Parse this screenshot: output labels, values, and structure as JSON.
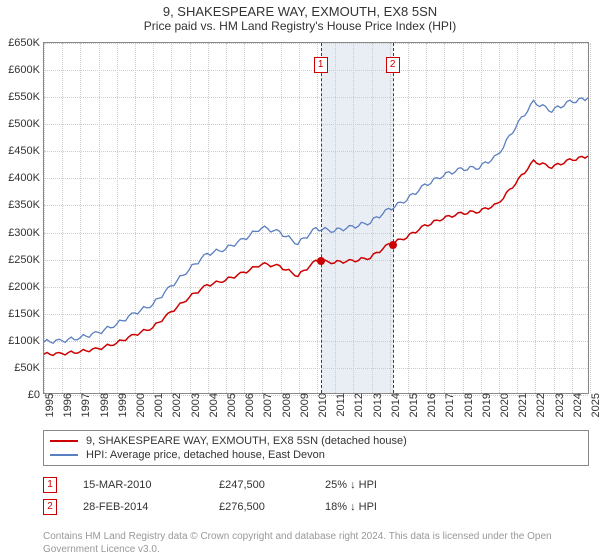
{
  "title": "9, SHAKESPEARE WAY, EXMOUTH, EX8 5SN",
  "subtitle": "Price paid vs. HM Land Registry's House Price Index (HPI)",
  "chart": {
    "type": "line",
    "background_color": "#ffffff",
    "grid_color": "#cccccc",
    "axis_color": "#888888",
    "label_fontsize": 11,
    "x": {
      "min": 1995,
      "max": 2025,
      "ticks": [
        1995,
        1996,
        1997,
        1998,
        1999,
        2000,
        2001,
        2002,
        2003,
        2004,
        2005,
        2006,
        2007,
        2008,
        2009,
        2010,
        2011,
        2012,
        2013,
        2014,
        2015,
        2016,
        2017,
        2018,
        2019,
        2020,
        2021,
        2022,
        2023,
        2024,
        2025
      ]
    },
    "y": {
      "min": 0,
      "max": 650000,
      "ticks": [
        0,
        50000,
        100000,
        150000,
        200000,
        250000,
        300000,
        350000,
        400000,
        450000,
        500000,
        550000,
        600000,
        650000
      ],
      "tick_labels": [
        "£0",
        "£50K",
        "£100K",
        "£150K",
        "£200K",
        "£250K",
        "£300K",
        "£350K",
        "£400K",
        "£450K",
        "£500K",
        "£550K",
        "£600K",
        "£650K"
      ]
    },
    "shaded_band": {
      "from": 2010.2,
      "to": 2014.16,
      "color": "#e9eef5"
    },
    "flags": [
      {
        "n": "1",
        "x": 2010.2,
        "color": "#cc0000"
      },
      {
        "n": "2",
        "x": 2014.16,
        "color": "#cc0000"
      }
    ],
    "markers": [
      {
        "x": 2010.2,
        "y": 247500,
        "color": "#cc0000"
      },
      {
        "x": 2014.16,
        "y": 276500,
        "color": "#cc0000"
      }
    ],
    "series": [
      {
        "id": "property",
        "label": "9, SHAKESPEARE WAY, EXMOUTH, EX8 5SN (detached house)",
        "color": "#cc0000",
        "line_width": 1.5,
        "points": [
          [
            1995,
            72000
          ],
          [
            1996,
            73000
          ],
          [
            1997,
            77000
          ],
          [
            1998,
            82000
          ],
          [
            1999,
            93000
          ],
          [
            2000,
            108000
          ],
          [
            2001,
            122000
          ],
          [
            2002,
            150000
          ],
          [
            2003,
            178000
          ],
          [
            2004,
            200000
          ],
          [
            2005,
            210000
          ],
          [
            2006,
            223000
          ],
          [
            2007,
            240000
          ],
          [
            2008,
            235000
          ],
          [
            2009,
            218000
          ],
          [
            2010,
            245000
          ],
          [
            2011,
            243000
          ],
          [
            2012,
            245000
          ],
          [
            2013,
            252000
          ],
          [
            2014,
            275000
          ],
          [
            2015,
            290000
          ],
          [
            2016,
            310000
          ],
          [
            2017,
            325000
          ],
          [
            2018,
            333000
          ],
          [
            2019,
            338000
          ],
          [
            2020,
            350000
          ],
          [
            2021,
            390000
          ],
          [
            2022,
            430000
          ],
          [
            2023,
            420000
          ],
          [
            2024,
            432000
          ],
          [
            2025,
            440000
          ]
        ]
      },
      {
        "id": "hpi",
        "label": "HPI: Average price, detached house, East Devon",
        "color": "#5a7fc0",
        "line_width": 1.3,
        "points": [
          [
            1995,
            95000
          ],
          [
            1996,
            97000
          ],
          [
            1997,
            103000
          ],
          [
            1998,
            112000
          ],
          [
            1999,
            128000
          ],
          [
            2000,
            148000
          ],
          [
            2001,
            165000
          ],
          [
            2002,
            198000
          ],
          [
            2003,
            230000
          ],
          [
            2004,
            258000
          ],
          [
            2005,
            268000
          ],
          [
            2006,
            285000
          ],
          [
            2007,
            308000
          ],
          [
            2008,
            298000
          ],
          [
            2009,
            278000
          ],
          [
            2010,
            305000
          ],
          [
            2011,
            302000
          ],
          [
            2012,
            308000
          ],
          [
            2013,
            318000
          ],
          [
            2014,
            340000
          ],
          [
            2015,
            360000
          ],
          [
            2016,
            385000
          ],
          [
            2017,
            405000
          ],
          [
            2018,
            415000
          ],
          [
            2019,
            420000
          ],
          [
            2020,
            440000
          ],
          [
            2021,
            495000
          ],
          [
            2022,
            540000
          ],
          [
            2023,
            525000
          ],
          [
            2024,
            540000
          ],
          [
            2025,
            548000
          ]
        ]
      }
    ]
  },
  "legend": {
    "border_color": "#888888"
  },
  "sales": [
    {
      "n": "1",
      "flag_color": "#cc0000",
      "date": "15-MAR-2010",
      "price": "£247,500",
      "diff": "25% ↓ HPI"
    },
    {
      "n": "2",
      "flag_color": "#cc0000",
      "date": "28-FEB-2014",
      "price": "£276,500",
      "diff": "18% ↓ HPI"
    }
  ],
  "attribution": "Contains HM Land Registry data © Crown copyright and database right 2024. This data is licensed under the Open Government Licence v3.0."
}
